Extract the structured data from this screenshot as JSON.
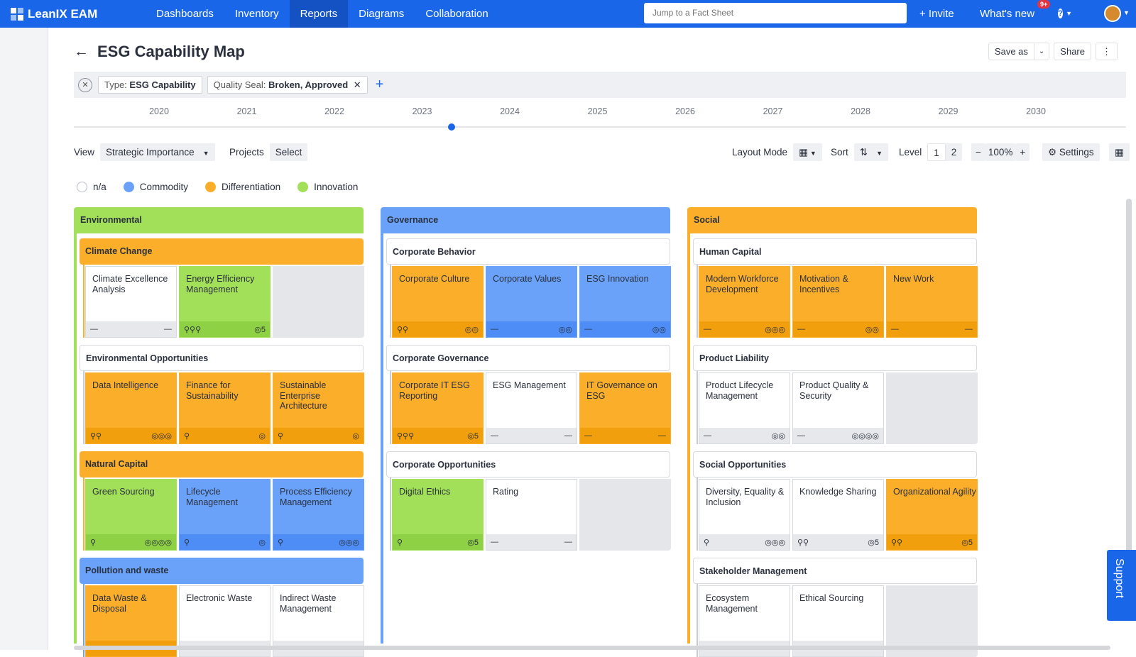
{
  "nav": {
    "logo": "LeanIX EAM",
    "items": [
      "Dashboards",
      "Inventory",
      "Reports",
      "Diagrams",
      "Collaboration"
    ],
    "active": "Reports",
    "search_placeholder": "Jump to a Fact Sheet",
    "invite": "+ Invite",
    "whats_new": "What's new",
    "badge": "9+",
    "help": "?"
  },
  "page": {
    "title": "ESG Capability Map",
    "save_as": "Save as",
    "share": "Share",
    "more": "⋮"
  },
  "filters": {
    "chips": [
      {
        "key": "Type:",
        "value": "ESG Capability"
      },
      {
        "key": "Quality Seal:",
        "value": "Broken, Approved"
      }
    ],
    "add": "+"
  },
  "timeline": {
    "years": [
      "2020",
      "2021",
      "2022",
      "2023",
      "2024",
      "2025",
      "2026",
      "2027",
      "2028",
      "2029",
      "2030"
    ],
    "selected_fraction": 0.359
  },
  "controls": {
    "view_label": "View",
    "view_value": "Strategic Importance",
    "projects_label": "Projects",
    "projects_value": "Select",
    "layout_label": "Layout Mode",
    "sort_label": "Sort",
    "level_label": "Level",
    "level_1": "1",
    "level_2": "2",
    "zoom_minus": "−",
    "zoom": "100%",
    "zoom_plus": "+",
    "settings": "Settings"
  },
  "legend": [
    {
      "label": "n/a",
      "color": "#ffffff"
    },
    {
      "label": "Commodity",
      "color": "#6aa2fa"
    },
    {
      "label": "Differentiation",
      "color": "#fbae2a"
    },
    {
      "label": "Innovation",
      "color": "#a3e05a"
    }
  ],
  "colors": {
    "na": "#ffffff",
    "commodity": "#6aa2fa",
    "differentiation": "#fbae2a",
    "innovation": "#a3e05a"
  },
  "columns": [
    {
      "name": "Environmental",
      "type": "innovation",
      "groups": [
        {
          "name": "Climate Change",
          "type": "differentiation",
          "tiles": [
            {
              "name": "Climate Excellence Analysis",
              "type": "na",
              "left": "—",
              "right": "—"
            },
            {
              "name": "Energy Efficiency Management",
              "type": "innovation",
              "left": "⚲⚲⚲",
              "right": "◎5"
            },
            null
          ]
        },
        {
          "name": "Environmental Opportunities",
          "type": "na",
          "tiles": [
            {
              "name": "Data Intelligence",
              "type": "differentiation",
              "left": "⚲⚲",
              "right": "◎◎◎"
            },
            {
              "name": "Finance for Sustainability",
              "type": "differentiation",
              "left": "⚲",
              "right": "◎"
            },
            {
              "name": "Sustainable Enterprise Architecture",
              "type": "differentiation",
              "left": "⚲",
              "right": "◎"
            }
          ]
        },
        {
          "name": "Natural Capital",
          "type": "differentiation",
          "tiles": [
            {
              "name": "Green Sourcing",
              "type": "innovation",
              "left": "⚲",
              "right": "◎◎◎◎"
            },
            {
              "name": "Lifecycle Management",
              "type": "commodity",
              "left": "⚲",
              "right": "◎"
            },
            {
              "name": "Process Efficiency Management",
              "type": "commodity",
              "left": "⚲",
              "right": "◎◎◎"
            }
          ]
        },
        {
          "name": "Pollution and waste",
          "type": "commodity",
          "tiles": [
            {
              "name": "Data Waste & Disposal",
              "type": "differentiation",
              "left": "",
              "right": ""
            },
            {
              "name": "Electronic Waste",
              "type": "na",
              "left": "",
              "right": ""
            },
            {
              "name": "Indirect Waste Management",
              "type": "na",
              "left": "",
              "right": ""
            }
          ]
        }
      ]
    },
    {
      "name": "Governance",
      "type": "commodity",
      "groups": [
        {
          "name": "Corporate Behavior",
          "type": "na",
          "tiles": [
            {
              "name": "Corporate Culture",
              "type": "differentiation",
              "left": "⚲⚲",
              "right": "◎◎"
            },
            {
              "name": "Corporate Values",
              "type": "commodity",
              "left": "—",
              "right": "◎◎"
            },
            {
              "name": "ESG Innovation",
              "type": "commodity",
              "left": "—",
              "right": "◎◎"
            }
          ]
        },
        {
          "name": "Corporate Governance",
          "type": "na",
          "tiles": [
            {
              "name": "Corporate IT ESG Reporting",
              "type": "differentiation",
              "left": "⚲⚲⚲",
              "right": "◎5"
            },
            {
              "name": "ESG Management",
              "type": "na",
              "left": "—",
              "right": "—"
            },
            {
              "name": "IT Governance on ESG",
              "type": "differentiation",
              "left": "—",
              "right": "—"
            }
          ]
        },
        {
          "name": "Corporate Opportunities",
          "type": "na",
          "tiles": [
            {
              "name": "Digital Ethics",
              "type": "innovation",
              "left": "⚲",
              "right": "◎5"
            },
            {
              "name": "Rating",
              "type": "na",
              "left": "—",
              "right": "—"
            },
            null
          ]
        }
      ]
    },
    {
      "name": "Social",
      "type": "differentiation",
      "groups": [
        {
          "name": "Human Capital",
          "type": "na",
          "tiles": [
            {
              "name": "Modern Workforce Development",
              "type": "differentiation",
              "left": "—",
              "right": "◎◎◎"
            },
            {
              "name": "Motivation & Incentives",
              "type": "differentiation",
              "left": "—",
              "right": "◎◎"
            },
            {
              "name": "New Work",
              "type": "differentiation",
              "left": "—",
              "right": "—"
            }
          ]
        },
        {
          "name": "Product Liability",
          "type": "na",
          "tiles": [
            {
              "name": "Product Lifecycle Management",
              "type": "na",
              "left": "—",
              "right": "◎◎"
            },
            {
              "name": "Product Quality & Security",
              "type": "na",
              "left": "—",
              "right": "◎◎◎◎"
            },
            null
          ]
        },
        {
          "name": "Social Opportunities",
          "type": "na",
          "tiles": [
            {
              "name": "Diversity, Equality & Inclusion",
              "type": "na",
              "left": "⚲",
              "right": "◎◎◎"
            },
            {
              "name": "Knowledge Sharing",
              "type": "na",
              "left": "⚲⚲",
              "right": "◎5"
            },
            {
              "name": "Organizational Agility",
              "type": "differentiation",
              "left": "⚲⚲",
              "right": "◎5"
            }
          ]
        },
        {
          "name": "Stakeholder Management",
          "type": "na",
          "tiles": [
            {
              "name": "Ecosystem Management",
              "type": "na",
              "left": "",
              "right": ""
            },
            {
              "name": "Ethical Sourcing",
              "type": "na",
              "left": "",
              "right": ""
            },
            null
          ]
        }
      ]
    }
  ],
  "support": "Support"
}
